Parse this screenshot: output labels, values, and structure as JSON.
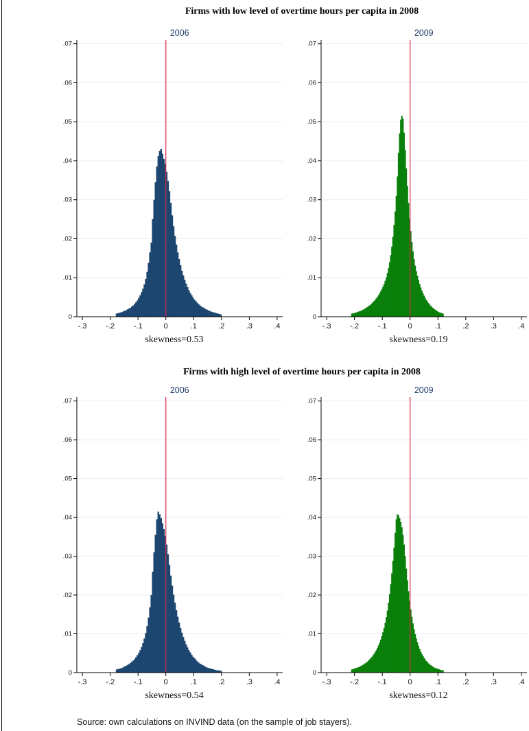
{
  "colors": {
    "blue": "#1c4670",
    "green": "#0a7f0a",
    "zero_line": "#d8284c",
    "grid": "#e8eef3",
    "panel_title": "#1c3a66"
  },
  "footer": {
    "source": "Source: own calculations on INVIND data (on the sample of job stayers)."
  },
  "chart_data": [
    {
      "type": "bar",
      "group_title": "Firms with low level of overtime hours per capita in 2008",
      "title": "2006",
      "subtitle": "skewness=0.53",
      "color_key": "blue",
      "xlim": [
        -0.32,
        0.42
      ],
      "ylim": [
        0,
        0.071
      ],
      "xticks": [
        -0.3,
        -0.2,
        -0.1,
        0,
        0.1,
        0.2,
        0.3,
        0.4
      ],
      "xticklabels": [
        "-.3",
        "-.2",
        "-.1",
        "0",
        ".1",
        ".2",
        ".3",
        ".4"
      ],
      "yticks": [
        0,
        0.01,
        0.02,
        0.03,
        0.04,
        0.05,
        0.06,
        0.07
      ],
      "yticklabels": [
        "0",
        ".01",
        ".02",
        ".03",
        ".04",
        ".05",
        ".06",
        ".07"
      ],
      "zero_line": 0,
      "bin_width": 0.005,
      "bin_start": -0.18,
      "values": [
        0.0008,
        0.0009,
        0.001,
        0.0011,
        0.0012,
        0.0014,
        0.0015,
        0.0017,
        0.0019,
        0.0021,
        0.0023,
        0.0026,
        0.0029,
        0.0033,
        0.0037,
        0.0042,
        0.0048,
        0.0055,
        0.0063,
        0.0072,
        0.0083,
        0.0097,
        0.0115,
        0.0138,
        0.0165,
        0.019,
        0.025,
        0.03,
        0.0345,
        0.0385,
        0.0412,
        0.0425,
        0.043,
        0.0418,
        0.0405,
        0.0392,
        0.0372,
        0.0348,
        0.0322,
        0.0292,
        0.026,
        0.0232,
        0.0207,
        0.0185,
        0.0165,
        0.0148,
        0.0132,
        0.0118,
        0.0106,
        0.0095,
        0.0085,
        0.0076,
        0.0068,
        0.0061,
        0.0055,
        0.0049,
        0.0044,
        0.004,
        0.0036,
        0.0032,
        0.0029,
        0.0026,
        0.0024,
        0.0022,
        0.002,
        0.0018,
        0.0016,
        0.0015,
        0.0013,
        0.0012,
        0.0011,
        0.001,
        0.0009,
        0.0008,
        0.0007,
        0.0006
      ]
    },
    {
      "type": "bar",
      "group_title": "",
      "title": "2009",
      "subtitle": "skewness=0.19",
      "color_key": "green",
      "xlim": [
        -0.32,
        0.42
      ],
      "ylim": [
        0,
        0.071
      ],
      "xticks": [
        -0.3,
        -0.2,
        -0.1,
        0,
        0.1,
        0.2,
        0.3,
        0.4
      ],
      "xticklabels": [
        "-.3",
        "-.2",
        "-.1",
        "0",
        ".1",
        ".2",
        ".3",
        ".4"
      ],
      "yticks": [
        0,
        0.01,
        0.02,
        0.03,
        0.04,
        0.05,
        0.06,
        0.07
      ],
      "yticklabels": [
        "0",
        ".01",
        ".02",
        ".03",
        ".04",
        ".05",
        ".06",
        ".07"
      ],
      "zero_line": 0,
      "bin_width": 0.004,
      "bin_start": -0.212,
      "values": [
        0.0008,
        0.0009,
        0.0009,
        0.001,
        0.0011,
        0.0012,
        0.0013,
        0.0014,
        0.0015,
        0.0016,
        0.0018,
        0.0019,
        0.0021,
        0.0023,
        0.0025,
        0.0027,
        0.0029,
        0.0031,
        0.0034,
        0.0037,
        0.004,
        0.0043,
        0.0047,
        0.0051,
        0.0055,
        0.006,
        0.0065,
        0.0071,
        0.0077,
        0.0084,
        0.0092,
        0.0101,
        0.0112,
        0.0125,
        0.014,
        0.0158,
        0.018,
        0.0205,
        0.0235,
        0.027,
        0.031,
        0.036,
        0.042,
        0.047,
        0.0505,
        0.0515,
        0.0508,
        0.0472,
        0.0428,
        0.038,
        0.0335,
        0.0292,
        0.0252,
        0.022,
        0.0192,
        0.0168,
        0.0148,
        0.0131,
        0.0117,
        0.0105,
        0.0094,
        0.0084,
        0.0075,
        0.0067,
        0.006,
        0.0054,
        0.0048,
        0.0043,
        0.0039,
        0.0035,
        0.0031,
        0.0028,
        0.0025,
        0.0022,
        0.002,
        0.0018,
        0.0016,
        0.0014,
        0.0012,
        0.0011,
        0.001,
        0.0009,
        0.0008
      ]
    },
    {
      "type": "bar",
      "group_title": "Firms with high level of overtime hours per capita in 2008",
      "title": "2006",
      "subtitle": "skewness=0.54",
      "color_key": "blue",
      "xlim": [
        -0.32,
        0.42
      ],
      "ylim": [
        0,
        0.071
      ],
      "xticks": [
        -0.3,
        -0.2,
        -0.1,
        0,
        0.1,
        0.2,
        0.3,
        0.4
      ],
      "xticklabels": [
        "-.3",
        "-.2",
        "-.1",
        "0",
        ".1",
        ".2",
        ".3",
        ".4"
      ],
      "yticks": [
        0,
        0.01,
        0.02,
        0.03,
        0.04,
        0.05,
        0.06,
        0.07
      ],
      "yticklabels": [
        "0",
        ".01",
        ".02",
        ".03",
        ".04",
        ".05",
        ".06",
        ".07"
      ],
      "zero_line": 0,
      "bin_width": 0.005,
      "bin_start": -0.18,
      "values": [
        0.0008,
        0.0009,
        0.001,
        0.0011,
        0.0012,
        0.0014,
        0.0016,
        0.0018,
        0.002,
        0.0022,
        0.0025,
        0.0028,
        0.0031,
        0.0035,
        0.004,
        0.0045,
        0.0051,
        0.0058,
        0.0066,
        0.0076,
        0.0088,
        0.0102,
        0.012,
        0.0142,
        0.0168,
        0.02,
        0.026,
        0.031,
        0.0355,
        0.0395,
        0.0415,
        0.0408,
        0.0398,
        0.0385,
        0.037,
        0.0352,
        0.033,
        0.0305,
        0.0278,
        0.025,
        0.0224,
        0.0201,
        0.018,
        0.0161,
        0.0144,
        0.0129,
        0.0115,
        0.0103,
        0.0092,
        0.0082,
        0.0073,
        0.0065,
        0.0058,
        0.0052,
        0.0046,
        0.0041,
        0.0037,
        0.0033,
        0.0029,
        0.0026,
        0.0023,
        0.0021,
        0.0019,
        0.0017,
        0.0015,
        0.0013,
        0.0012,
        0.0011,
        0.001,
        0.0009,
        0.0008,
        0.0007,
        0.0006,
        0.0006,
        0.0005,
        0.0005
      ]
    },
    {
      "type": "bar",
      "group_title": "",
      "title": "2009",
      "subtitle": "skewness=0.12",
      "color_key": "green",
      "xlim": [
        -0.32,
        0.42
      ],
      "ylim": [
        0,
        0.071
      ],
      "xticks": [
        -0.3,
        -0.2,
        -0.1,
        0,
        0.1,
        0.2,
        0.3,
        0.4
      ],
      "xticklabels": [
        "-.3",
        "-.2",
        "-.1",
        "0",
        ".1",
        ".2",
        ".3",
        ".4"
      ],
      "yticks": [
        0,
        0.01,
        0.02,
        0.03,
        0.04,
        0.05,
        0.06,
        0.07
      ],
      "yticklabels": [
        "0",
        ".01",
        ".02",
        ".03",
        ".04",
        ".05",
        ".06",
        ".07"
      ],
      "zero_line": 0,
      "bin_width": 0.004,
      "bin_start": -0.212,
      "values": [
        0.0008,
        0.0009,
        0.001,
        0.0011,
        0.0012,
        0.0013,
        0.0014,
        0.0015,
        0.0017,
        0.0018,
        0.002,
        0.0022,
        0.0024,
        0.0026,
        0.0028,
        0.0031,
        0.0034,
        0.0037,
        0.004,
        0.0044,
        0.0048,
        0.0053,
        0.0058,
        0.0064,
        0.007,
        0.0077,
        0.0085,
        0.0094,
        0.0104,
        0.0115,
        0.0128,
        0.0143,
        0.016,
        0.018,
        0.0202,
        0.0228,
        0.0256,
        0.0288,
        0.0322,
        0.036,
        0.0395,
        0.0408,
        0.0405,
        0.0398,
        0.0388,
        0.0375,
        0.0355,
        0.033,
        0.03,
        0.0268,
        0.0238,
        0.021,
        0.0185,
        0.0163,
        0.0144,
        0.0127,
        0.0112,
        0.0099,
        0.0088,
        0.0078,
        0.0069,
        0.0061,
        0.0054,
        0.0048,
        0.0043,
        0.0038,
        0.0034,
        0.003,
        0.0027,
        0.0024,
        0.0021,
        0.0019,
        0.0017,
        0.0015,
        0.0013,
        0.0012,
        0.0011,
        0.001,
        0.0009,
        0.0008,
        0.0007,
        0.0006,
        0.0006
      ]
    }
  ]
}
